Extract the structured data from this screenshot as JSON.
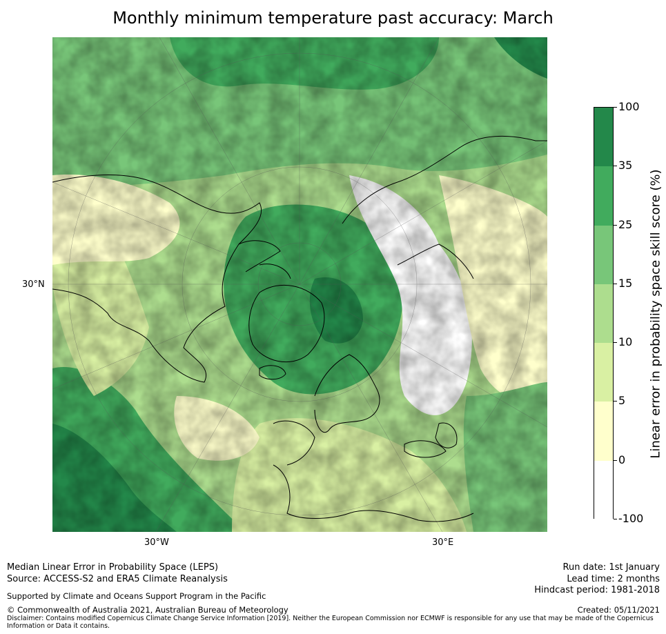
{
  "title": "Monthly minimum temperature past accuracy: March",
  "map": {
    "lat_label": "30°N",
    "lon_labels": [
      "30°W",
      "30°E"
    ],
    "projection": "north-polar-stereographic"
  },
  "colorbar": {
    "label": "Linear error in probability space skill score (%)",
    "ticks": [
      "100",
      "35",
      "25",
      "15",
      "10",
      "5",
      "0",
      "-100"
    ],
    "bins": [
      {
        "from": 35,
        "to": 100,
        "color": "#23884a"
      },
      {
        "from": 25,
        "to": 35,
        "color": "#41ab5d"
      },
      {
        "from": 15,
        "to": 25,
        "color": "#78c679"
      },
      {
        "from": 10,
        "to": 15,
        "color": "#addd8e"
      },
      {
        "from": 5,
        "to": 10,
        "color": "#d9f0a3"
      },
      {
        "from": 0,
        "to": 5,
        "color": "#ffffcc"
      },
      {
        "from": -100,
        "to": 0,
        "color": "#ffffff"
      }
    ]
  },
  "footer": {
    "line1": "Median Linear Error in Probability Space (LEPS)",
    "line2": "Source: ACCESS-S2 and ERA5 Climate Reanalysis",
    "support": "Supported by Climate and Oceans Support Program in the Pacific",
    "copyright": "© Commonwealth of Australia 2021, Australian Bureau of Meteorology",
    "disclaimer1": "Disclaimer: Contains modified Copernicus Climate Change Service Information [2019]. Neither the European Commission nor ECMWF is responsible for any use that may be made of the Copernicus",
    "disclaimer2": "Information or Data it contains.",
    "run_date": "Run date: 1st January",
    "lead_time": "Lead time: 2 months",
    "hindcast": "Hindcast period: 1981-2018",
    "created": "Created: 05/11/2021"
  }
}
